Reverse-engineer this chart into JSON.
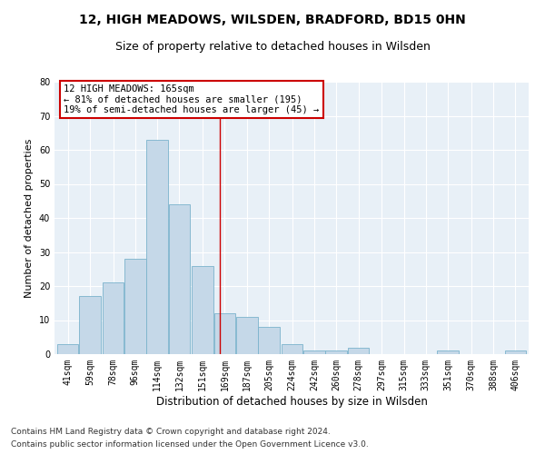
{
  "title1": "12, HIGH MEADOWS, WILSDEN, BRADFORD, BD15 0HN",
  "title2": "Size of property relative to detached houses in Wilsden",
  "xlabel": "Distribution of detached houses by size in Wilsden",
  "ylabel": "Number of detached properties",
  "footer1": "Contains HM Land Registry data © Crown copyright and database right 2024.",
  "footer2": "Contains public sector information licensed under the Open Government Licence v3.0.",
  "annotation_title": "12 HIGH MEADOWS: 165sqm",
  "annotation_line1": "← 81% of detached houses are smaller (195)",
  "annotation_line2": "19% of semi-detached houses are larger (45) →",
  "property_size": 165,
  "bar_labels": [
    "41sqm",
    "59sqm",
    "78sqm",
    "96sqm",
    "114sqm",
    "132sqm",
    "151sqm",
    "169sqm",
    "187sqm",
    "205sqm",
    "224sqm",
    "242sqm",
    "260sqm",
    "278sqm",
    "297sqm",
    "315sqm",
    "333sqm",
    "351sqm",
    "370sqm",
    "388sqm",
    "406sqm"
  ],
  "bar_values": [
    3,
    17,
    21,
    28,
    63,
    44,
    26,
    12,
    11,
    8,
    3,
    1,
    1,
    2,
    0,
    0,
    0,
    1,
    0,
    0,
    1
  ],
  "bar_edges": [
    41,
    59,
    78,
    96,
    114,
    132,
    151,
    169,
    187,
    205,
    224,
    242,
    260,
    278,
    297,
    315,
    333,
    351,
    370,
    388,
    406
  ],
  "bar_color": "#c5d8e8",
  "bar_edge_color": "#7ab3cc",
  "vline_x": 165,
  "vline_color": "#cc0000",
  "bg_color": "#e8f0f7",
  "grid_color": "#ffffff",
  "ylim": [
    0,
    80
  ],
  "yticks": [
    0,
    10,
    20,
    30,
    40,
    50,
    60,
    70,
    80
  ],
  "annotation_box_color": "#ffffff",
  "annotation_box_edge": "#cc0000",
  "title1_fontsize": 10,
  "title2_fontsize": 9,
  "xlabel_fontsize": 8.5,
  "ylabel_fontsize": 8,
  "tick_fontsize": 7,
  "annotation_fontsize": 7.5,
  "footer_fontsize": 6.5
}
